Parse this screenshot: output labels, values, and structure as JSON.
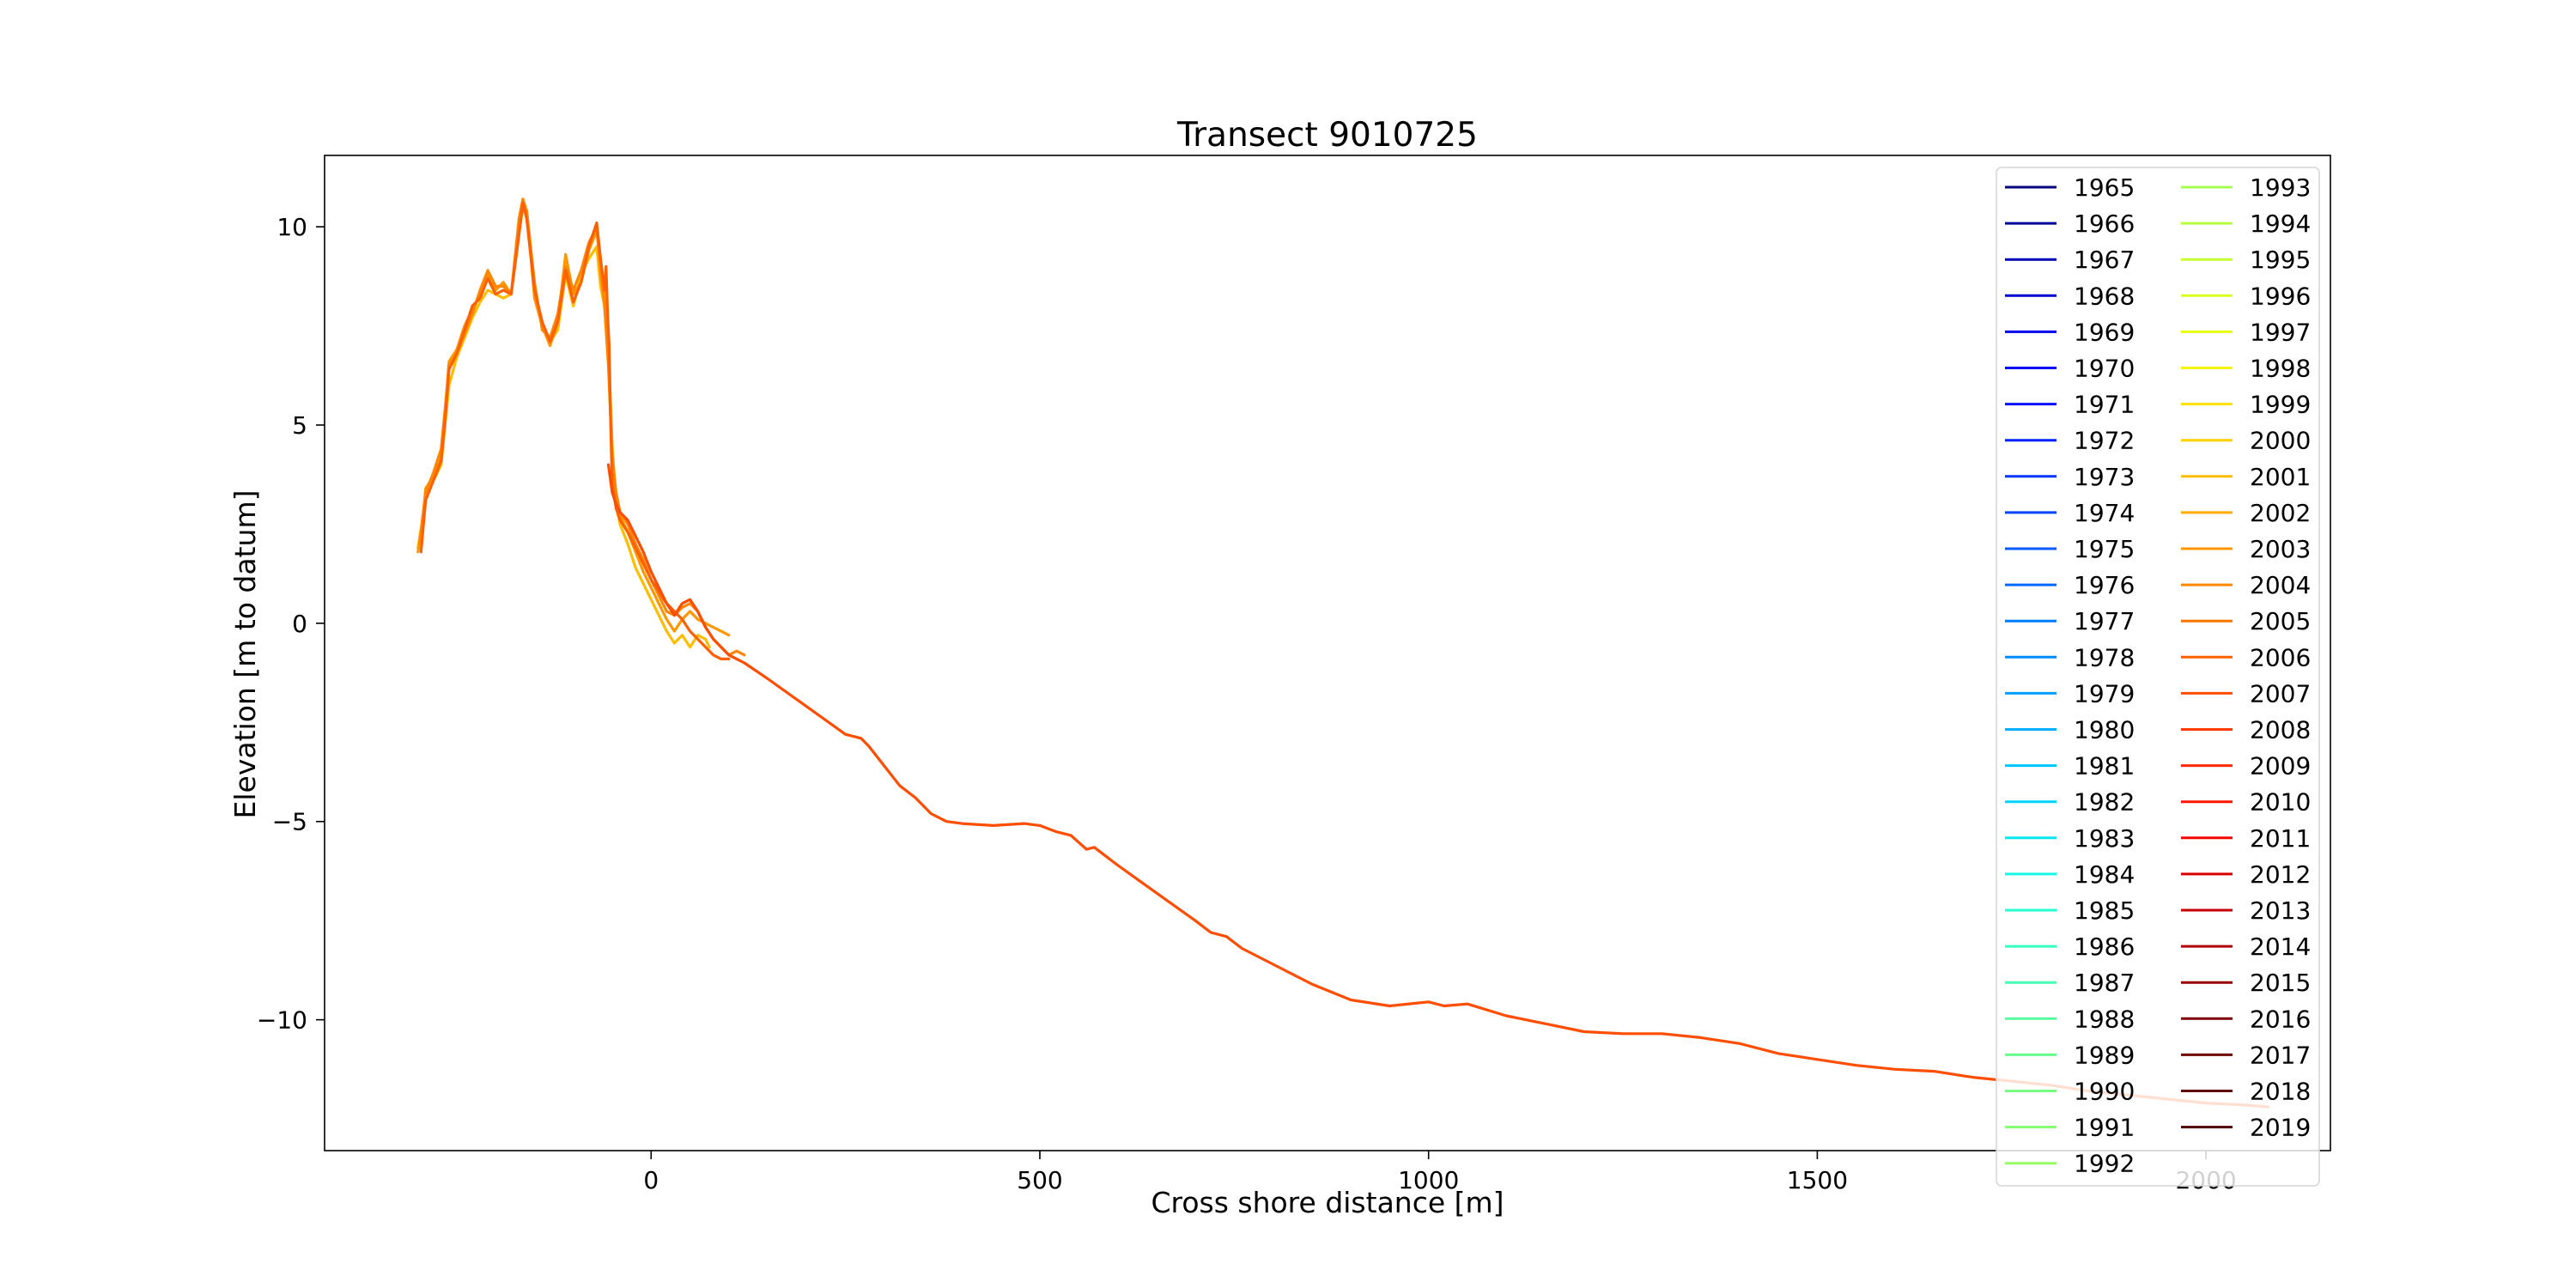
{
  "chart_data": {
    "type": "line",
    "title": "Transect 9010725",
    "xlabel": "Cross shore distance [m]",
    "ylabel": "Elevation [m to datum]",
    "xlim": [
      -420,
      2160
    ],
    "ylim": [
      -13.3,
      11.8
    ],
    "xticks": [
      0,
      500,
      1000,
      1500,
      2000
    ],
    "yticks": [
      -10,
      -5,
      0,
      5,
      10
    ],
    "grid": false,
    "legend_position": "right",
    "legend_columns": 2,
    "legend": [
      {
        "label": "1965",
        "color": "#000080"
      },
      {
        "label": "1966",
        "color": "#00009a"
      },
      {
        "label": "1967",
        "color": "#0000b6"
      },
      {
        "label": "1968",
        "color": "#0000d1"
      },
      {
        "label": "1969",
        "color": "#0000ed"
      },
      {
        "label": "1970",
        "color": "#0000ff"
      },
      {
        "label": "1971",
        "color": "#0010ff"
      },
      {
        "label": "1972",
        "color": "#0020ff"
      },
      {
        "label": "1973",
        "color": "#0034ff"
      },
      {
        "label": "1974",
        "color": "#0044ff"
      },
      {
        "label": "1975",
        "color": "#0058ff"
      },
      {
        "label": "1976",
        "color": "#0068ff"
      },
      {
        "label": "1977",
        "color": "#007cff"
      },
      {
        "label": "1978",
        "color": "#008cff"
      },
      {
        "label": "1979",
        "color": "#00a0ff"
      },
      {
        "label": "1980",
        "color": "#00b0ff"
      },
      {
        "label": "1981",
        "color": "#00c4ff"
      },
      {
        "label": "1982",
        "color": "#00d4ff"
      },
      {
        "label": "1983",
        "color": "#06e8f1"
      },
      {
        "label": "1984",
        "color": "#16f8e1"
      },
      {
        "label": "1985",
        "color": "#26ffd1"
      },
      {
        "label": "1986",
        "color": "#36ffc1"
      },
      {
        "label": "1987",
        "color": "#46ffb1"
      },
      {
        "label": "1988",
        "color": "#56ffa1"
      },
      {
        "label": "1989",
        "color": "#66ff90"
      },
      {
        "label": "1990",
        "color": "#76ff80"
      },
      {
        "label": "1991",
        "color": "#86ff70"
      },
      {
        "label": "1992",
        "color": "#96ff60"
      },
      {
        "label": "1993",
        "color": "#a6ff50"
      },
      {
        "label": "1994",
        "color": "#b6ff40"
      },
      {
        "label": "1995",
        "color": "#c7ff30"
      },
      {
        "label": "1996",
        "color": "#d7ff20"
      },
      {
        "label": "1997",
        "color": "#e7ff0f"
      },
      {
        "label": "1998",
        "color": "#f7f400"
      },
      {
        "label": "1999",
        "color": "#ffe200"
      },
      {
        "label": "2000",
        "color": "#ffd000"
      },
      {
        "label": "2001",
        "color": "#ffbd00"
      },
      {
        "label": "2002",
        "color": "#ffab00"
      },
      {
        "label": "2003",
        "color": "#ff9800"
      },
      {
        "label": "2004",
        "color": "#ff8600"
      },
      {
        "label": "2005",
        "color": "#ff7300"
      },
      {
        "label": "2006",
        "color": "#ff6000"
      },
      {
        "label": "2007",
        "color": "#ff4e00"
      },
      {
        "label": "2008",
        "color": "#ff3b00"
      },
      {
        "label": "2009",
        "color": "#ff2900"
      },
      {
        "label": "2010",
        "color": "#ff1600"
      },
      {
        "label": "2011",
        "color": "#f10800"
      },
      {
        "label": "2012",
        "color": "#da0000"
      },
      {
        "label": "2013",
        "color": "#c40000"
      },
      {
        "label": "2014",
        "color": "#ad0000"
      },
      {
        "label": "2015",
        "color": "#960000"
      },
      {
        "label": "2016",
        "color": "#800000"
      },
      {
        "label": "2017",
        "color": "#700000"
      },
      {
        "label": "2018",
        "color": "#600000"
      },
      {
        "label": "2019",
        "color": "#500000"
      }
    ],
    "series": [
      {
        "color": "#ffbd00",
        "x": [
          -300,
          -295,
          -290,
          -280,
          -270,
          -265,
          -260,
          -250,
          -240,
          -230,
          -220,
          -210,
          -200,
          -190,
          -180,
          -170,
          -165,
          -160,
          -150,
          -140,
          -130,
          -120,
          -110,
          -100,
          -90,
          -80,
          -70,
          -65,
          -60,
          -55,
          -50,
          -45,
          -40,
          -30,
          -20,
          -10,
          0,
          10,
          20,
          30,
          40,
          50,
          60,
          70,
          75
        ],
        "y": [
          1.9,
          2.5,
          3.2,
          3.6,
          4.0,
          5.0,
          6.0,
          6.7,
          7.2,
          7.7,
          8.1,
          8.4,
          8.3,
          8.2,
          8.3,
          9.8,
          10.5,
          10.3,
          8.5,
          7.5,
          7.1,
          7.4,
          8.8,
          8.0,
          8.8,
          9.2,
          9.5,
          8.5,
          8.0,
          7.0,
          4.5,
          3.0,
          2.5,
          2.0,
          1.4,
          1.0,
          0.6,
          0.2,
          -0.2,
          -0.5,
          -0.3,
          -0.6,
          -0.3,
          -0.4,
          -0.6
        ]
      },
      {
        "color": "#ff9800",
        "x": [
          -300,
          -295,
          -290,
          -280,
          -270,
          -265,
          -260,
          -250,
          -240,
          -230,
          -220,
          -210,
          -200,
          -190,
          -180,
          -170,
          -165,
          -160,
          -150,
          -140,
          -130,
          -120,
          -110,
          -100,
          -90,
          -80,
          -70,
          -65,
          -60,
          -55,
          -50,
          -45,
          -40,
          -30,
          -20,
          -10,
          0,
          10,
          20,
          30,
          40,
          50,
          60,
          70,
          80,
          90,
          100
        ],
        "y": [
          1.8,
          2.3,
          3.4,
          3.7,
          4.2,
          5.2,
          6.6,
          6.9,
          7.5,
          7.9,
          8.3,
          8.8,
          8.4,
          8.6,
          8.3,
          10.0,
          10.6,
          10.4,
          8.2,
          7.5,
          7.0,
          7.6,
          9.3,
          8.3,
          8.6,
          9.4,
          9.9,
          9.0,
          8.3,
          6.8,
          4.0,
          3.1,
          2.7,
          2.3,
          1.8,
          1.3,
          0.9,
          0.5,
          0.1,
          -0.2,
          0.1,
          0.3,
          0.1,
          0.0,
          -0.1,
          -0.2,
          -0.3
        ]
      },
      {
        "color": "#ff8600",
        "x": [
          -298,
          -290,
          -280,
          -270,
          -265,
          -260,
          -250,
          -240,
          -230,
          -220,
          -210,
          -200,
          -190,
          -180,
          -170,
          -165,
          -160,
          -150,
          -140,
          -130,
          -120,
          -110,
          -100,
          -90,
          -80,
          -70,
          -65,
          -60,
          -55,
          -50,
          -45,
          -40,
          -30,
          -20,
          -10,
          0,
          10,
          20,
          30,
          40,
          50,
          60,
          70,
          80,
          90,
          100,
          110,
          120
        ],
        "y": [
          2.0,
          3.3,
          3.8,
          4.4,
          5.4,
          6.5,
          6.8,
          7.3,
          7.8,
          8.4,
          8.9,
          8.5,
          8.5,
          8.3,
          10.2,
          10.7,
          10.4,
          8.6,
          7.4,
          7.2,
          7.8,
          9.0,
          8.4,
          8.9,
          9.6,
          10.0,
          8.9,
          8.0,
          6.5,
          4.2,
          3.3,
          2.8,
          2.5,
          2.0,
          1.6,
          1.1,
          0.7,
          0.3,
          0.2,
          0.4,
          0.5,
          0.3,
          -0.1,
          -0.4,
          -0.6,
          -0.8,
          -0.7,
          -0.8
        ]
      },
      {
        "color": "#ff6000",
        "x": [
          -296,
          -290,
          -280,
          -270,
          -265,
          -260,
          -250,
          -240,
          -230,
          -220,
          -210,
          -200,
          -190,
          -180,
          -170,
          -165,
          -160,
          -150,
          -140,
          -130,
          -120,
          -110,
          -100,
          -90,
          -80,
          -70,
          -65,
          -60,
          -58,
          -56,
          -54,
          -52,
          -50,
          -45,
          -40,
          -30,
          -20,
          -10,
          0,
          10,
          20,
          30,
          40,
          50,
          60,
          70,
          80,
          90,
          100
        ],
        "y": [
          1.8,
          3.1,
          3.6,
          4.1,
          5.1,
          6.4,
          6.8,
          7.4,
          8.0,
          8.2,
          8.7,
          8.3,
          8.4,
          8.3,
          9.8,
          10.6,
          10.2,
          8.4,
          7.6,
          7.1,
          7.6,
          8.9,
          8.1,
          8.6,
          9.5,
          10.1,
          9.2,
          8.4,
          9.0,
          7.8,
          7.0,
          5.0,
          3.5,
          2.9,
          2.6,
          2.3,
          1.9,
          1.5,
          1.1,
          0.8,
          0.5,
          0.3,
          0.1,
          -0.2,
          -0.4,
          -0.6,
          -0.8,
          -0.9,
          -0.9
        ]
      },
      {
        "color": "#ff4e00",
        "x": [
          -55,
          -50,
          -45,
          -40,
          -30,
          -20,
          -10,
          0,
          10,
          20,
          30,
          40,
          50,
          60,
          70,
          80,
          90,
          100,
          110,
          120,
          150,
          200,
          250,
          270,
          280,
          300,
          320,
          340,
          360,
          380,
          400,
          440,
          480,
          500,
          520,
          540,
          560,
          570,
          580,
          600,
          650,
          700,
          720,
          740,
          760,
          800,
          850,
          900,
          950,
          1000,
          1020,
          1050,
          1100,
          1150,
          1200,
          1250,
          1300,
          1350,
          1400,
          1450,
          1500,
          1550,
          1600,
          1650,
          1700,
          1750,
          1800,
          1850,
          1900,
          1950,
          2000,
          2050,
          2080
        ],
        "y": [
          4.0,
          3.3,
          3.0,
          2.8,
          2.6,
          2.2,
          1.8,
          1.3,
          0.9,
          0.5,
          0.2,
          0.5,
          0.6,
          0.3,
          -0.1,
          -0.4,
          -0.6,
          -0.8,
          -0.9,
          -1.0,
          -1.4,
          -2.1,
          -2.8,
          -2.9,
          -3.1,
          -3.6,
          -4.1,
          -4.4,
          -4.8,
          -5.0,
          -5.05,
          -5.1,
          -5.05,
          -5.1,
          -5.25,
          -5.35,
          -5.7,
          -5.65,
          -5.8,
          -6.1,
          -6.8,
          -7.5,
          -7.8,
          -7.9,
          -8.2,
          -8.6,
          -9.1,
          -9.5,
          -9.65,
          -9.55,
          -9.65,
          -9.6,
          -9.9,
          -10.1,
          -10.3,
          -10.35,
          -10.35,
          -10.45,
          -10.6,
          -10.85,
          -11.0,
          -11.15,
          -11.25,
          -11.3,
          -11.45,
          -11.55,
          -11.65,
          -11.8,
          -11.9,
          -12.0,
          -12.1,
          -12.15,
          -12.2
        ]
      }
    ]
  }
}
